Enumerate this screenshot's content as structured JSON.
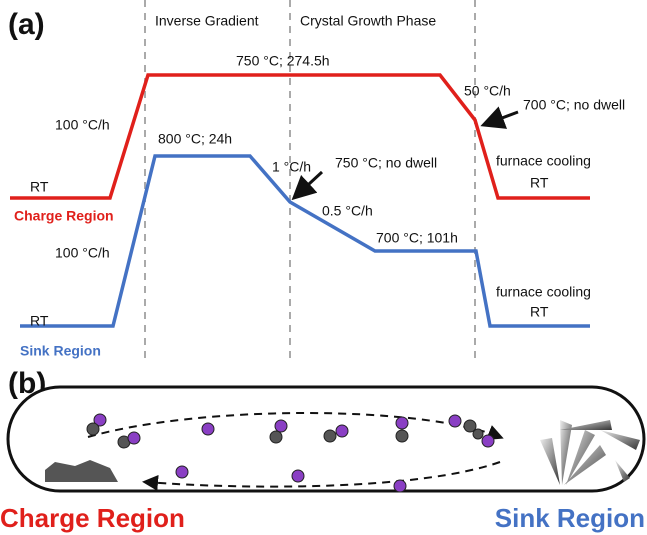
{
  "panel_a": {
    "label": "(a)",
    "phases": [
      "Inverse Gradient",
      "Crystal Growth Phase"
    ],
    "charge": {
      "start": "RT",
      "ramp": "100 °C/h",
      "hold": "750 °C; 274.5h",
      "cool_rate": "50 °C/h",
      "point": "700 °C; no dwell",
      "cooling": "furnace cooling",
      "end": "RT",
      "region": "Charge Region"
    },
    "sink": {
      "start": "RT",
      "ramp": "100 °C/h",
      "hold": "800 °C; 24h",
      "rate1": "1 °C/h",
      "point": "750 °C; no dwell",
      "rate2": "0.5 °C/h",
      "hold2": "700 °C; 101h",
      "cooling": "furnace cooling",
      "end": "RT",
      "region": "Sink Region"
    }
  },
  "panel_b": {
    "label": "(b)",
    "left": "Charge Region",
    "right": "Sink Region"
  }
}
